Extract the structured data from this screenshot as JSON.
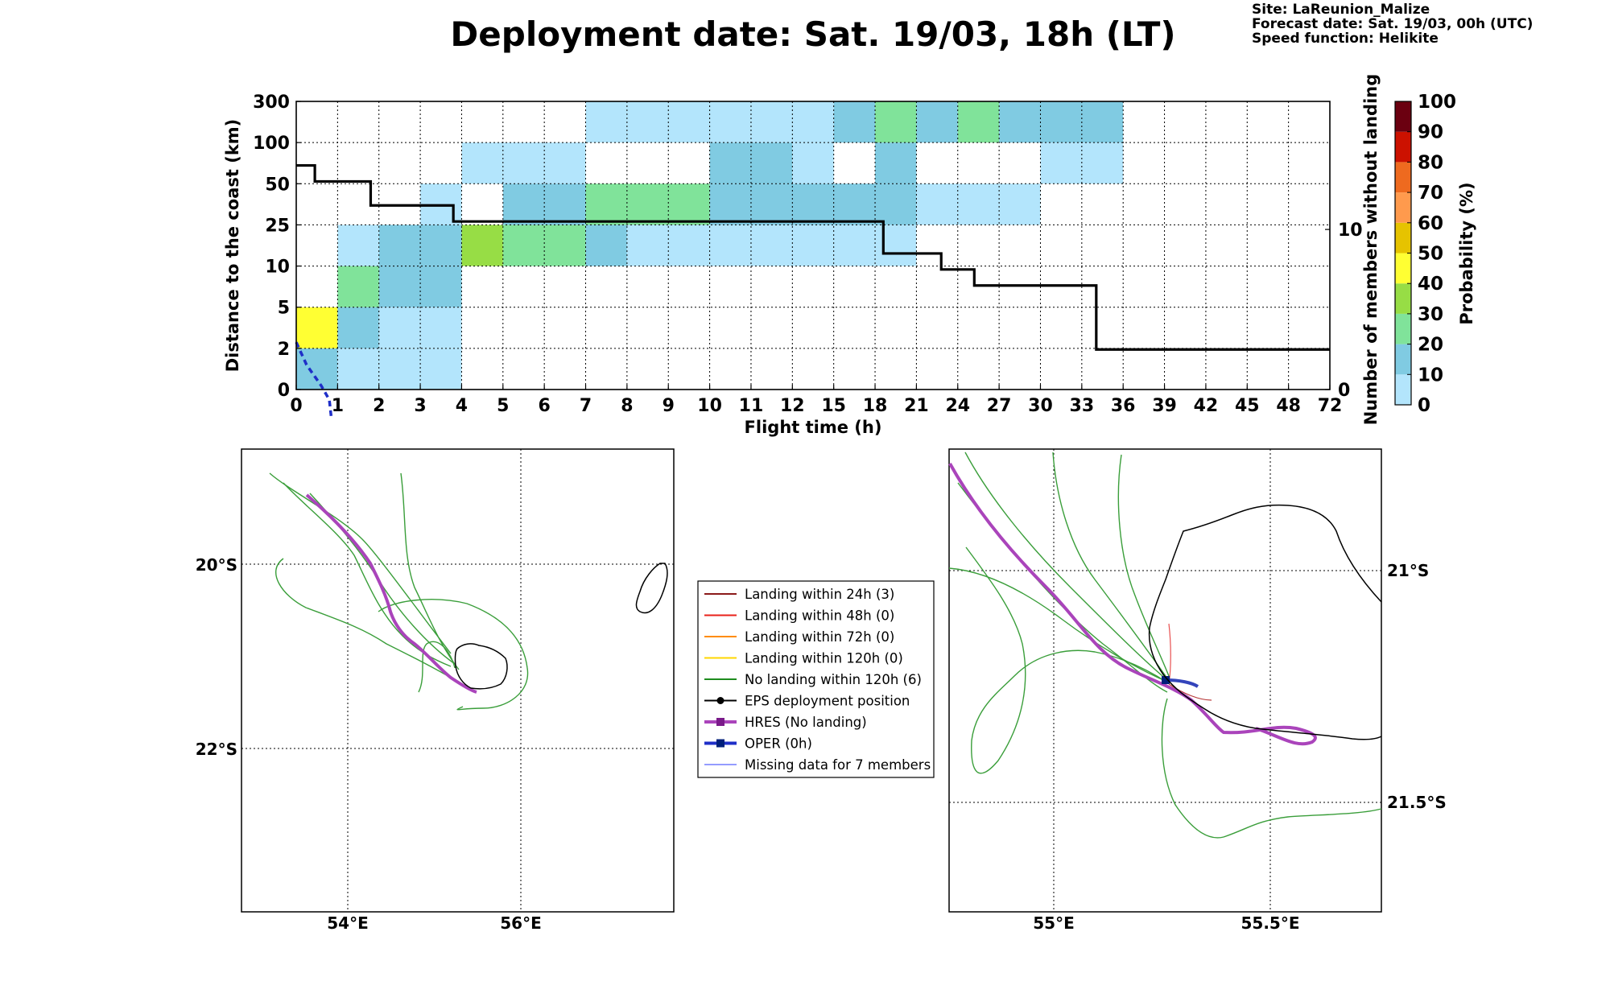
{
  "title": "Deployment date: Sat. 19/03, 18h (LT)",
  "info": {
    "site": "Site: LaReunion_Malize",
    "forecast": "Forecast date: Sat. 19/03, 00h (UTC)",
    "speed": "Speed function: Helikite"
  },
  "colors": {
    "p0_10": "#b3e5fc",
    "p10_20": "#80cbe2",
    "p20_30": "#80e39a",
    "p30_40": "#97dd45",
    "p40_50": "#ffff33",
    "p50_60": "#e6c300",
    "p60_70": "#ff9a4d",
    "p70_80": "#ee6a1f",
    "p80_90": "#cc1100",
    "p90_100": "#6b0010",
    "members_line": "#000000",
    "hres": "#aa44bb",
    "oper": "#1f2fc8",
    "eps_green": "#2ca02c"
  },
  "chart_data": [
    {
      "type": "heatmap",
      "title": "Deployment date: Sat. 19/03, 18h (LT)",
      "xlabel": "Flight time (h)",
      "ylabel": "Distance to the coast (km)",
      "y2label": "Number of members without landing",
      "colorbar_label": "Probability (%)",
      "x_ticks": [
        "0",
        "1",
        "2",
        "3",
        "4",
        "5",
        "6",
        "7",
        "8",
        "9",
        "10",
        "11",
        "12",
        "15",
        "18",
        "21",
        "24",
        "27",
        "30",
        "33",
        "36",
        "39",
        "42",
        "45",
        "48",
        "72"
      ],
      "y_ticks": [
        "0",
        "2",
        "5",
        "10",
        "25",
        "50",
        "100",
        "300"
      ],
      "y2_ticks": [
        "0",
        "10"
      ],
      "colorbar_ticks": [
        "0",
        "10",
        "20",
        "30",
        "40",
        "50",
        "60",
        "70",
        "80",
        "90",
        "100"
      ],
      "grid": true,
      "cells": [
        {
          "x0": 0,
          "x1": 1,
          "y0": 0,
          "y1": 1,
          "p": "10-20"
        },
        {
          "x0": 1,
          "x1": 4,
          "y0": 0,
          "y1": 1,
          "p": "0-10"
        },
        {
          "x0": 0,
          "x1": 1,
          "y0": 1,
          "y1": 2,
          "p": "40-50"
        },
        {
          "x0": 1,
          "x1": 2,
          "y0": 1,
          "y1": 2,
          "p": "10-20"
        },
        {
          "x0": 2,
          "x1": 4,
          "y0": 1,
          "y1": 2,
          "p": "0-10"
        },
        {
          "x0": 1,
          "x1": 2,
          "y0": 2,
          "y1": 3,
          "p": "20-30"
        },
        {
          "x0": 2,
          "x1": 4,
          "y0": 2,
          "y1": 3,
          "p": "10-20"
        },
        {
          "x0": 1,
          "x1": 2,
          "y0": 3,
          "y1": 4,
          "p": "0-10"
        },
        {
          "x0": 2,
          "x1": 4,
          "y0": 3,
          "y1": 4,
          "p": "10-20"
        },
        {
          "x0": 4,
          "x1": 5,
          "y0": 3,
          "y1": 4,
          "p": "30-40"
        },
        {
          "x0": 5,
          "x1": 7,
          "y0": 3,
          "y1": 4,
          "p": "20-30"
        },
        {
          "x0": 7,
          "x1": 8,
          "y0": 3,
          "y1": 4,
          "p": "10-20"
        },
        {
          "x0": 8,
          "x1": 15,
          "y0": 3,
          "y1": 4,
          "p": "0-10"
        },
        {
          "x0": 3,
          "x1": 4,
          "y0": 4,
          "y1": 5,
          "p": "0-10"
        },
        {
          "x0": 5,
          "x1": 7,
          "y0": 4,
          "y1": 5,
          "p": "10-20"
        },
        {
          "x0": 7,
          "x1": 10,
          "y0": 4,
          "y1": 5,
          "p": "20-30"
        },
        {
          "x0": 10,
          "x1": 15,
          "y0": 4,
          "y1": 5,
          "p": "10-20"
        },
        {
          "x0": 15,
          "x1": 18,
          "y0": 4,
          "y1": 5,
          "p": "0-10"
        },
        {
          "x0": 4,
          "x1": 7,
          "y0": 5,
          "y1": 6,
          "p": "0-10"
        },
        {
          "x0": 10,
          "x1": 12,
          "y0": 5,
          "y1": 6,
          "p": "10-20"
        },
        {
          "x0": 12,
          "x1": 13,
          "y0": 5,
          "y1": 6,
          "p": "0-10"
        },
        {
          "x0": 14,
          "x1": 15,
          "y0": 5,
          "y1": 6,
          "p": "10-20"
        },
        {
          "x0": 18,
          "x1": 20,
          "y0": 5,
          "y1": 6,
          "p": "0-10"
        },
        {
          "x0": 7,
          "x1": 13,
          "y0": 6,
          "y1": 7,
          "p": "0-10"
        },
        {
          "x0": 13,
          "x1": 14,
          "y0": 6,
          "y1": 7,
          "p": "10-20"
        },
        {
          "x0": 14,
          "x1": 15,
          "y0": 6,
          "y1": 7,
          "p": "20-30"
        },
        {
          "x0": 15,
          "x1": 16,
          "y0": 6,
          "y1": 7,
          "p": "10-20"
        },
        {
          "x0": 16,
          "x1": 17,
          "y0": 6,
          "y1": 7,
          "p": "20-30"
        },
        {
          "x0": 17,
          "x1": 20,
          "y0": 6,
          "y1": 7,
          "p": "10-20"
        }
      ],
      "members_without_landing": [
        {
          "x0": 0,
          "x1": 0.45,
          "y": 14
        },
        {
          "x0": 0.45,
          "x1": 1.8,
          "y": 13
        },
        {
          "x0": 1.8,
          "x1": 3.8,
          "y": 11.5
        },
        {
          "x0": 3.8,
          "x1": 14.2,
          "y": 10.5
        },
        {
          "x0": 14.2,
          "x1": 15.6,
          "y": 8.5
        },
        {
          "x0": 15.6,
          "x1": 16.4,
          "y": 7.5
        },
        {
          "x0": 16.4,
          "x1": 19.35,
          "y": 6.5
        },
        {
          "x0": 19.35,
          "x1": 25,
          "y": 2.5
        }
      ],
      "oper_distance": [
        [
          0,
          1.15
        ],
        [
          0.25,
          0.6
        ],
        [
          0.6,
          0.1
        ],
        [
          0.8,
          -0.25
        ],
        [
          0.85,
          -0.7
        ]
      ]
    },
    {
      "type": "map",
      "lat_labels": [
        "20°S",
        "22°S"
      ],
      "lon_labels": [
        "54°E",
        "56°E"
      ]
    },
    {
      "type": "map",
      "lat_labels": [
        "21°S",
        "21.5°S"
      ],
      "lon_labels": [
        "55°E",
        "55.5°E"
      ]
    }
  ],
  "legend": [
    {
      "label": "Landing within 24h (3)",
      "color": "#8b1a1a",
      "marker": "none"
    },
    {
      "label": "Landing within 48h (0)",
      "color": "#e8221a",
      "marker": "none"
    },
    {
      "label": "Landing within 72h (0)",
      "color": "#ff8c00",
      "marker": "none"
    },
    {
      "label": "Landing within 120h (0)",
      "color": "#ffd700",
      "marker": "none"
    },
    {
      "label": "No landing within 120h (6)",
      "color": "#1e8c1e",
      "marker": "none"
    },
    {
      "label": "EPS deployment position",
      "color": "#000000",
      "marker": "dot"
    },
    {
      "label": "HRES (No landing)",
      "color": "#aa44bb",
      "marker": "square-purple"
    },
    {
      "label": "OPER (0h)",
      "color": "#1f2fc8",
      "marker": "square-navy"
    },
    {
      "label": "Missing data for 7 members",
      "color": "#5561ff",
      "marker": "thin"
    }
  ]
}
